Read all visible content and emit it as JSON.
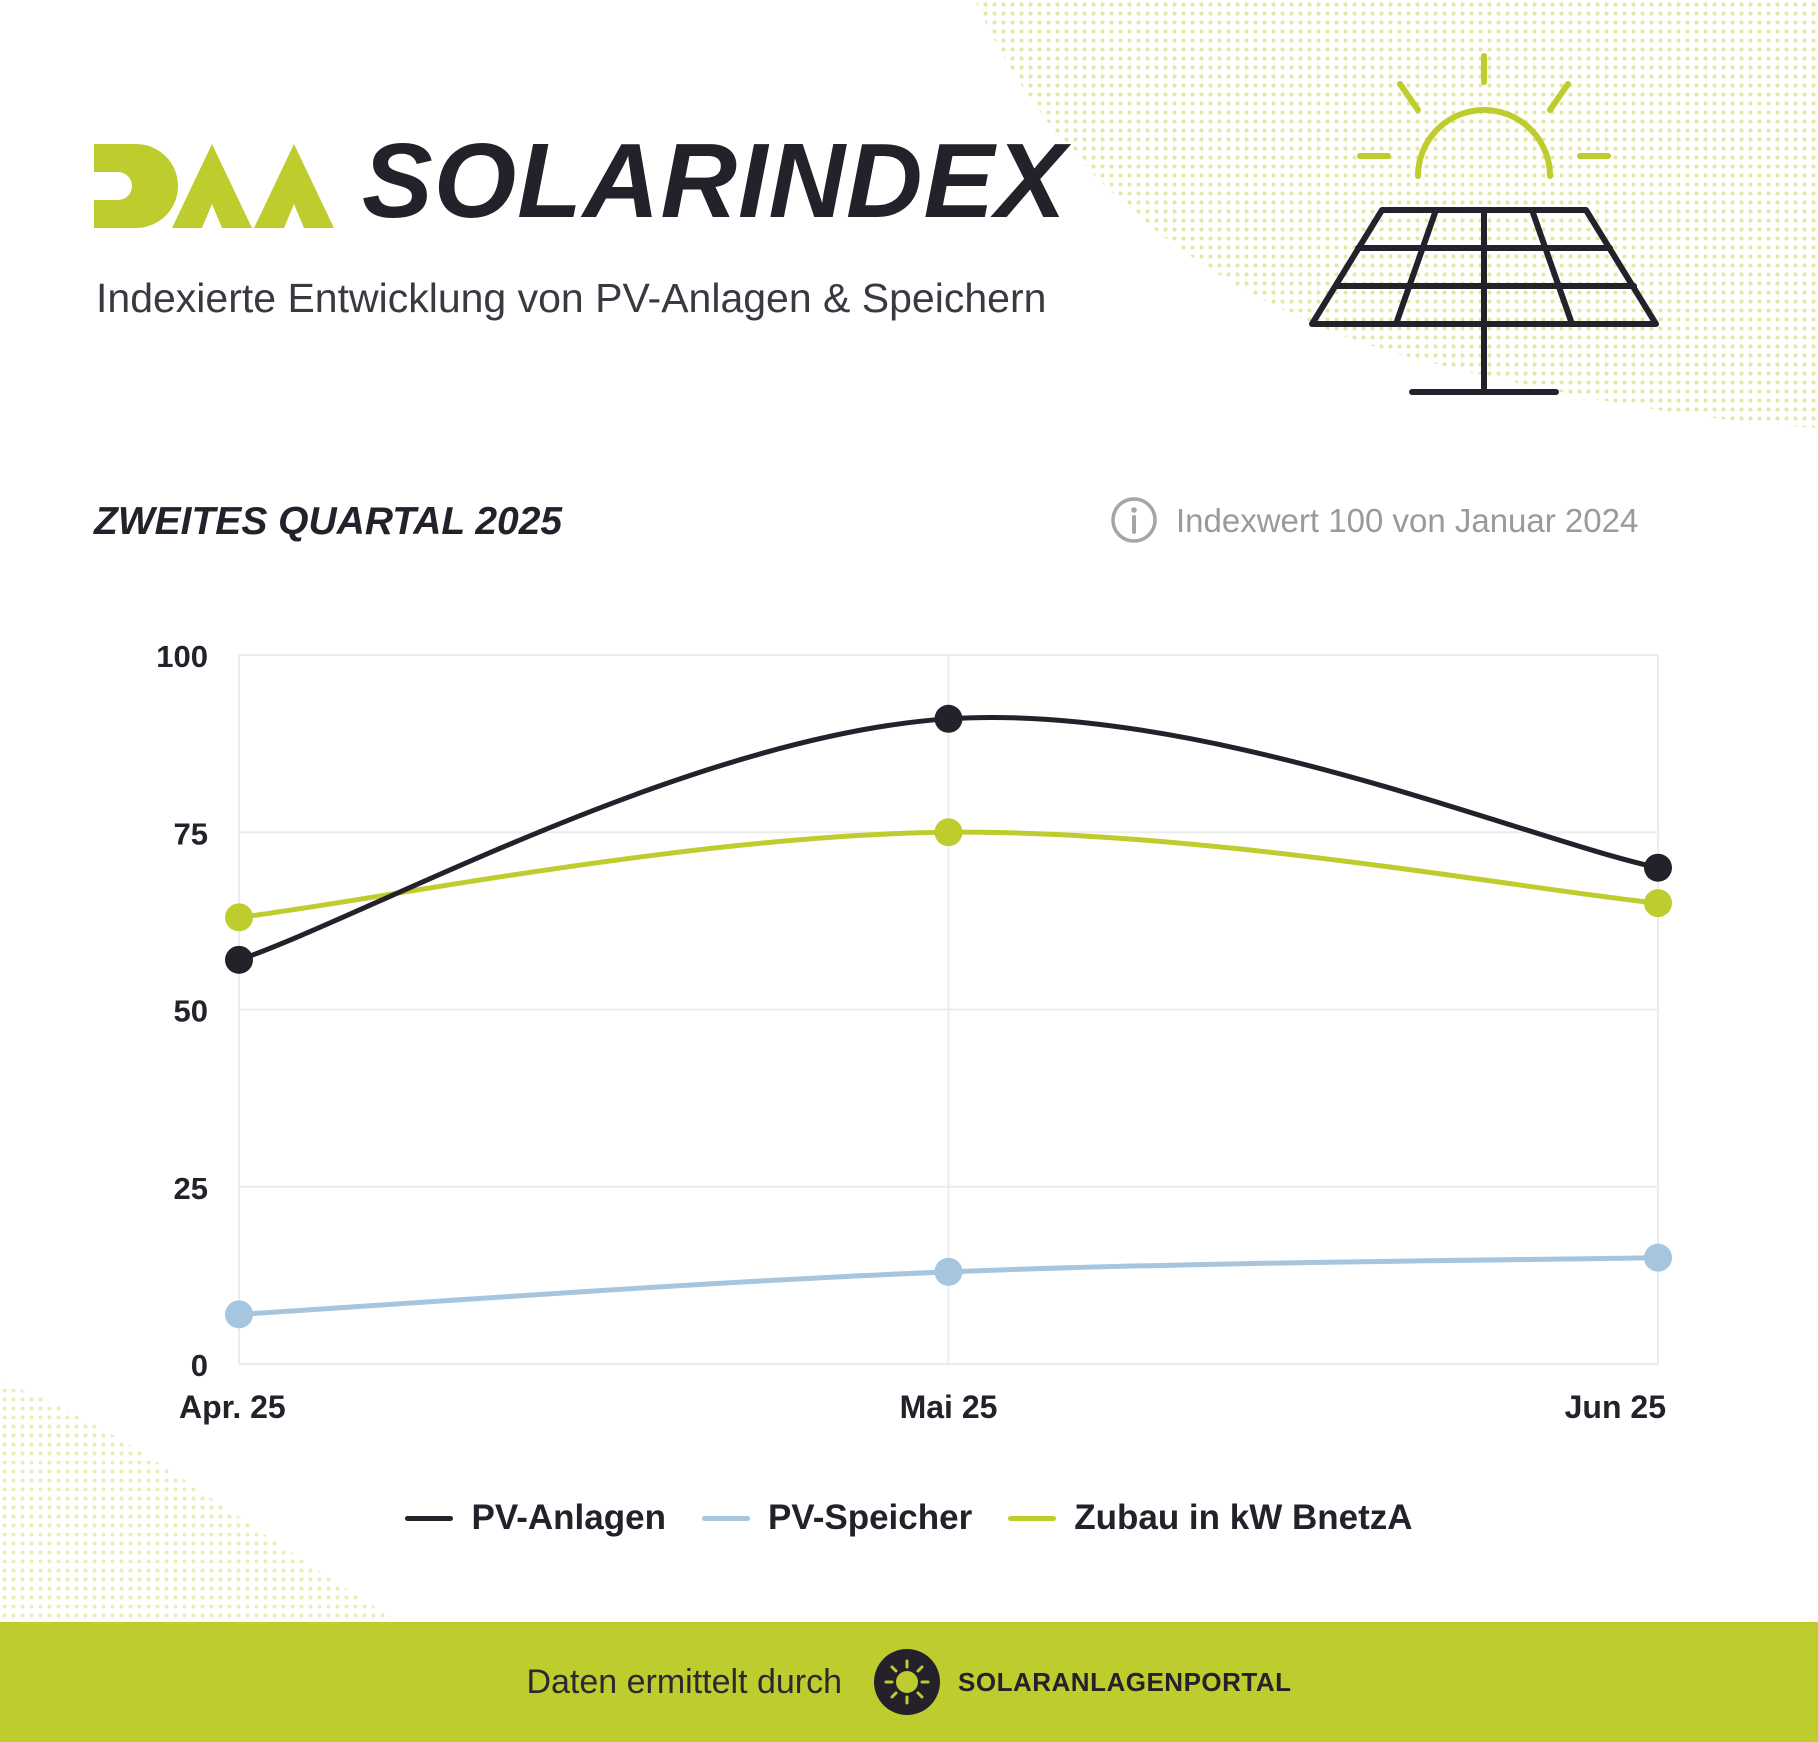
{
  "header": {
    "logo_text": "DAA",
    "title": "SOLARINDEX",
    "subtitle": "Indexierte Entwicklung von PV-Anlagen & Speichern"
  },
  "section": {
    "quarter": "ZWEITES QUARTAL 2025",
    "index_note": "Indexwert 100 von Januar 2024"
  },
  "icons": {
    "info": "info-icon",
    "solar_panel": "solar-panel-icon",
    "portal_logo": "sun-badge-icon"
  },
  "colors": {
    "accent": "#bfcc2e",
    "dark": "#24212a",
    "blue": "#a6c5df"
  },
  "chart_data": {
    "type": "line",
    "categories": [
      "Apr. 25",
      "Mai 25",
      "Jun 25"
    ],
    "series": [
      {
        "name": "PV-Anlagen",
        "values": [
          57,
          91,
          70
        ],
        "color": "#24212a"
      },
      {
        "name": "PV-Speicher",
        "values": [
          7,
          13,
          15
        ],
        "color": "#a6c5df"
      },
      {
        "name": "Zubau in kW BnetzA",
        "values": [
          63,
          75,
          65
        ],
        "color": "#bfcc2e"
      }
    ],
    "ylim": [
      0,
      100
    ],
    "yticks": [
      0,
      25,
      50,
      75,
      100
    ],
    "grid": true,
    "legend_position": "bottom",
    "xlabel": "",
    "ylabel": ""
  },
  "footer": {
    "prefix": "Daten ermittelt durch",
    "portal": "SOLARANLAGENPORTAL"
  }
}
